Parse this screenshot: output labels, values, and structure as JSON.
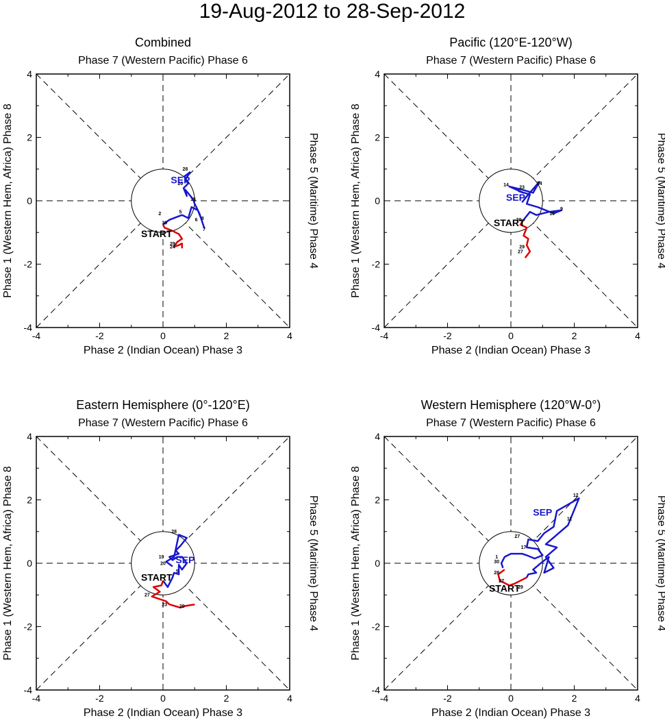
{
  "figure": {
    "title": "19-Aug-2012 to 28-Sep-2012",
    "axis_labels": {
      "top": "Phase 7 (Western Pacific) Phase 6",
      "bottom": "Phase 2 (Indian Ocean) Phase 3",
      "left": "Phase 1 (Western Hem, Africa) Phase 8",
      "right": "Phase 5 (Maritime) Phase 4"
    },
    "tick_labels": [
      "-4",
      "-2",
      "0",
      "2",
      "4"
    ],
    "start_marker": "START",
    "month_marker": "SEP",
    "colors": {
      "aug": "#dd0000",
      "sep": "#1818cc",
      "axes": "#000000"
    }
  },
  "chart_data": [
    {
      "type": "line",
      "title": "Combined",
      "xlim": [
        -4,
        4
      ],
      "ylim": [
        -4,
        4
      ],
      "start": [
        -0.2,
        -1.15
      ],
      "month_label_pos": [
        0.55,
        0.55
      ],
      "aug": {
        "points": [
          [
            0.6,
            -1.5
          ],
          [
            0.6,
            -1.35
          ],
          [
            0.5,
            -1.4
          ],
          [
            0.35,
            -1.45
          ],
          [
            0.45,
            -1.3
          ],
          [
            0.6,
            -1.2
          ],
          [
            0.5,
            -1.05
          ],
          [
            0.3,
            -0.95
          ],
          [
            0.05,
            -0.85
          ],
          [
            0.0,
            -0.75
          ]
        ],
        "labels": [
          [
            "24",
            0.3,
            -1.5
          ],
          [
            "29",
            0.3,
            -1.4
          ]
        ]
      },
      "sep": {
        "points": [
          [
            0.0,
            -0.75
          ],
          [
            0.2,
            -0.6
          ],
          [
            0.6,
            -0.45
          ],
          [
            0.8,
            -0.55
          ],
          [
            0.9,
            -0.2
          ],
          [
            1.1,
            -0.3
          ],
          [
            1.2,
            -0.55
          ],
          [
            1.3,
            -0.85
          ],
          [
            1.15,
            -0.4
          ],
          [
            1.0,
            -0.1
          ],
          [
            0.95,
            0.05
          ],
          [
            0.7,
            0.35
          ],
          [
            0.75,
            0.15
          ],
          [
            0.65,
            0.4
          ],
          [
            0.8,
            0.55
          ],
          [
            0.7,
            0.65
          ],
          [
            0.85,
            0.9
          ],
          [
            0.65,
            0.75
          ]
        ],
        "labels": [
          [
            "2",
            -0.1,
            -0.45
          ],
          [
            "30",
            0.05,
            -0.75
          ],
          [
            "5",
            0.55,
            -0.4
          ],
          [
            "6",
            1.05,
            -0.65
          ],
          [
            "7",
            1.3,
            -0.95
          ],
          [
            "8",
            1.25,
            -0.6
          ],
          [
            "13",
            0.95,
            0.0
          ],
          [
            "20",
            0.55,
            0.5
          ],
          [
            "28",
            0.7,
            0.95
          ]
        ]
      }
    },
    {
      "type": "line",
      "title": "Pacific (120°E-120°W)",
      "xlim": [
        -4,
        4
      ],
      "ylim": [
        -4,
        4
      ],
      "start": [
        -0.05,
        -0.8
      ],
      "month_label_pos": [
        0.15,
        0.0
      ],
      "aug": {
        "points": [
          [
            0.45,
            -1.8
          ],
          [
            0.6,
            -1.6
          ],
          [
            0.5,
            -1.4
          ],
          [
            0.55,
            -1.2
          ],
          [
            0.4,
            -1.1
          ],
          [
            0.5,
            -0.85
          ],
          [
            0.3,
            -0.75
          ],
          [
            0.4,
            -0.6
          ]
        ],
        "labels": [
          [
            "27",
            0.3,
            -1.65
          ],
          [
            "29",
            0.35,
            -1.5
          ]
        ]
      },
      "sep": {
        "points": [
          [
            0.4,
            -0.6
          ],
          [
            0.6,
            -0.35
          ],
          [
            0.8,
            -0.45
          ],
          [
            1.2,
            -0.35
          ],
          [
            1.6,
            -0.3
          ],
          [
            1.35,
            -0.4
          ],
          [
            0.85,
            -0.2
          ],
          [
            0.5,
            -0.1
          ],
          [
            0.6,
            0.2
          ],
          [
            0.25,
            0.3
          ],
          [
            0.4,
            0.25
          ],
          [
            -0.05,
            0.45
          ],
          [
            0.35,
            0.35
          ],
          [
            0.7,
            0.25
          ],
          [
            0.9,
            0.6
          ],
          [
            0.55,
            0.2
          ],
          [
            0.35,
            -0.05
          ]
        ],
        "labels": [
          [
            "14",
            -0.15,
            0.45
          ],
          [
            "23",
            0.35,
            0.38
          ],
          [
            "24",
            0.9,
            0.5
          ],
          [
            "9",
            1.6,
            -0.3
          ],
          [
            "10",
            1.3,
            -0.45
          ],
          [
            "30",
            0.25,
            -0.65
          ]
        ]
      }
    },
    {
      "type": "line",
      "title": "Eastern Hemisphere (0°-120°E)",
      "xlim": [
        -4,
        4
      ],
      "ylim": [
        -4,
        4
      ],
      "start": [
        -0.2,
        -0.55
      ],
      "month_label_pos": [
        0.7,
        0.0
      ],
      "aug": {
        "points": [
          [
            1.0,
            -1.3
          ],
          [
            0.7,
            -1.35
          ],
          [
            0.55,
            -1.4
          ],
          [
            0.2,
            -1.3
          ],
          [
            0.1,
            -1.2
          ],
          [
            -0.35,
            -1.05
          ],
          [
            -0.1,
            -0.9
          ],
          [
            -0.3,
            -0.75
          ],
          [
            -0.05,
            -0.7
          ],
          [
            0.0,
            -0.55
          ]
        ],
        "labels": [
          [
            "29",
            0.6,
            -1.4
          ],
          [
            "23",
            0.05,
            -1.35
          ],
          [
            "27",
            -0.5,
            -1.05
          ]
        ]
      },
      "sep": {
        "points": [
          [
            0.0,
            -0.55
          ],
          [
            0.15,
            -0.75
          ],
          [
            0.3,
            -0.45
          ],
          [
            0.35,
            -0.3
          ],
          [
            0.5,
            -0.35
          ],
          [
            0.5,
            -0.05
          ],
          [
            0.6,
            -0.2
          ],
          [
            0.75,
            0.0
          ],
          [
            0.6,
            0.2
          ],
          [
            0.45,
            0.2
          ],
          [
            0.3,
            0.1
          ],
          [
            0.2,
            0.2
          ],
          [
            0.5,
            0.3
          ],
          [
            0.4,
            0.4
          ],
          [
            0.55,
            0.55
          ],
          [
            0.75,
            0.8
          ],
          [
            0.5,
            0.9
          ],
          [
            0.35,
            0.2
          ],
          [
            0.1,
            0.05
          ],
          [
            0.3,
            -0.1
          ]
        ],
        "labels": [
          [
            "19",
            -0.05,
            0.15
          ],
          [
            "20",
            0.0,
            -0.05
          ],
          [
            "28",
            0.35,
            0.95
          ],
          [
            "5",
            0.45,
            -0.3
          ]
        ]
      }
    },
    {
      "type": "line",
      "title": "Western Hemisphere (120°W-0°)",
      "xlim": [
        -4,
        4
      ],
      "ylim": [
        -4,
        4
      ],
      "start": [
        -0.2,
        -0.9
      ],
      "month_label_pos": [
        1.0,
        1.5
      ],
      "aug": {
        "points": [
          [
            -0.2,
            -0.2
          ],
          [
            -0.4,
            -0.35
          ],
          [
            -0.35,
            -0.55
          ],
          [
            -0.05,
            -0.7
          ],
          [
            0.1,
            -0.65
          ],
          [
            0.4,
            -0.5
          ],
          [
            0.5,
            -0.45
          ]
        ],
        "labels": [
          [
            "28",
            -0.45,
            -0.35
          ],
          [
            "27",
            -0.3,
            -0.6
          ],
          [
            "29",
            0.3,
            -0.8
          ]
        ]
      },
      "sep": {
        "points": [
          [
            0.5,
            -0.45
          ],
          [
            0.55,
            -0.35
          ],
          [
            0.8,
            -0.3
          ],
          [
            0.7,
            -0.2
          ],
          [
            1.0,
            0.05
          ],
          [
            1.2,
            0.2
          ],
          [
            1.05,
            -0.3
          ],
          [
            1.35,
            -0.15
          ],
          [
            1.1,
            0.2
          ],
          [
            1.45,
            0.5
          ],
          [
            1.1,
            0.6
          ],
          [
            1.8,
            1.2
          ],
          [
            2.15,
            2.05
          ],
          [
            1.45,
            1.65
          ],
          [
            1.35,
            1.15
          ],
          [
            1.05,
            0.95
          ],
          [
            0.85,
            0.7
          ],
          [
            0.55,
            0.75
          ],
          [
            0.5,
            0.5
          ],
          [
            0.85,
            0.45
          ],
          [
            1.0,
            0.25
          ],
          [
            0.75,
            0.15
          ],
          [
            0.5,
            0.25
          ],
          [
            0.35,
            0.3
          ],
          [
            0.0,
            0.3
          ],
          [
            -0.2,
            0.2
          ],
          [
            -0.3,
            0.0
          ],
          [
            -0.25,
            -0.15
          ]
        ],
        "labels": [
          [
            "12",
            2.05,
            2.1
          ],
          [
            "11",
            1.85,
            1.35
          ],
          [
            "17",
            0.4,
            0.45
          ],
          [
            "27",
            0.2,
            0.8
          ],
          [
            "1",
            -0.45,
            0.15
          ],
          [
            "30",
            -0.45,
            0.0
          ]
        ]
      }
    }
  ]
}
